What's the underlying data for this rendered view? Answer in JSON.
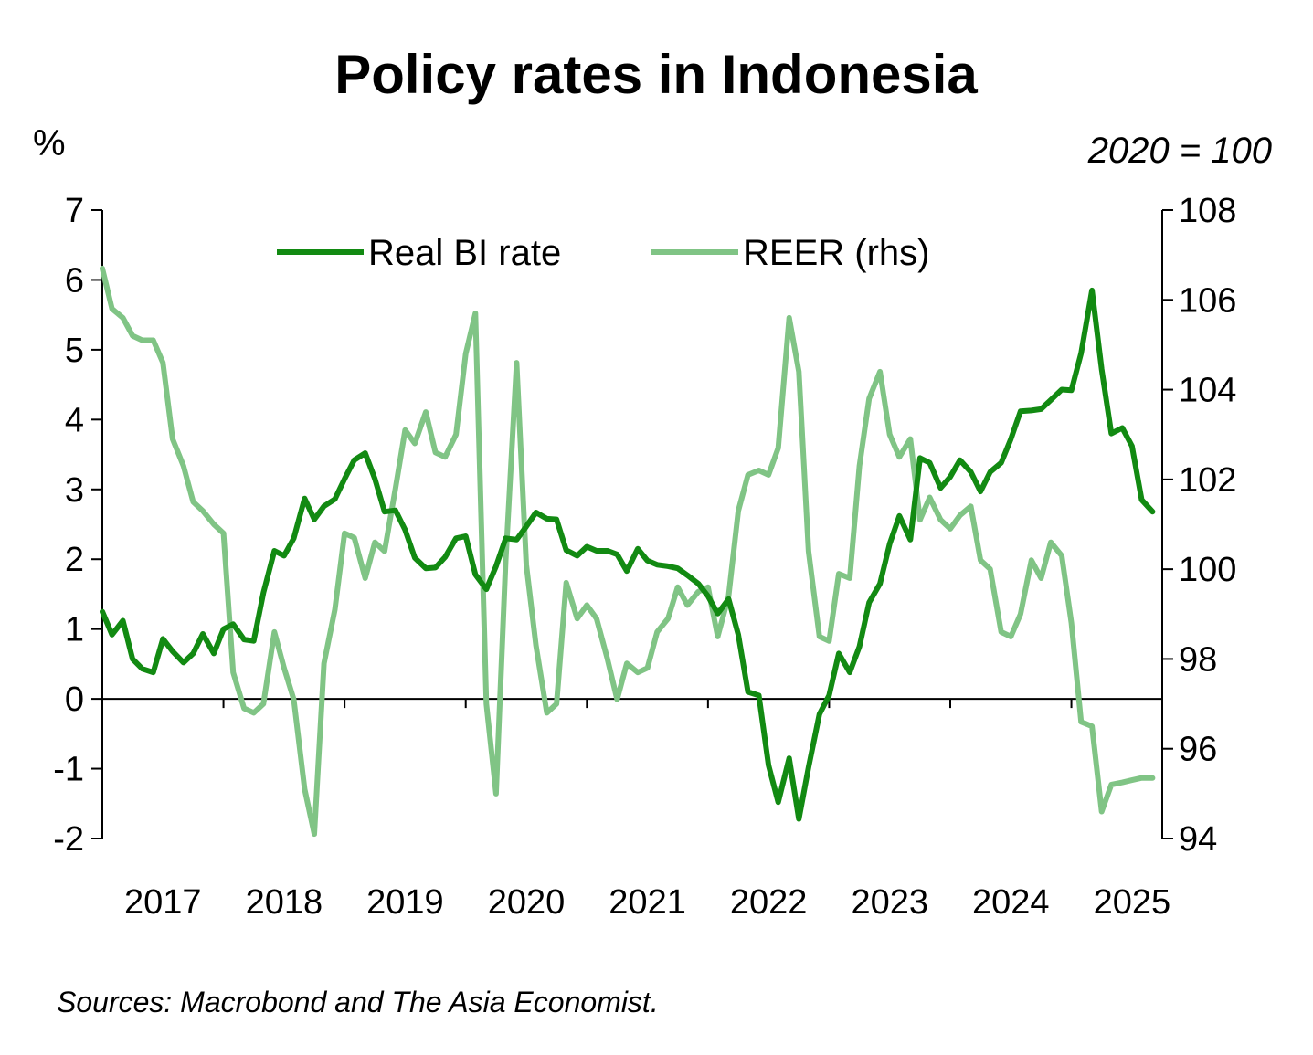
{
  "chart_data": {
    "type": "line",
    "title": "Policy rates in Indonesia",
    "left_axis_unit": "%",
    "right_axis_unit": "2020 = 100",
    "x_tick_labels": [
      "2017",
      "2018",
      "2019",
      "2020",
      "2021",
      "2022",
      "2023",
      "2024",
      "2025"
    ],
    "x_range": [
      2017.0,
      2025.75
    ],
    "y_left": {
      "min": -2,
      "max": 7,
      "ticks": [
        7,
        6,
        5,
        4,
        3,
        2,
        1,
        0,
        -1,
        -2
      ]
    },
    "y_right": {
      "min": 94,
      "max": 108,
      "ticks": [
        108,
        106,
        104,
        102,
        100,
        98,
        96,
        94
      ]
    },
    "legend_position": "top",
    "source": "Sources: Macrobond and The Asia Economist.",
    "series": [
      {
        "name": "Real BI rate",
        "axis": "left",
        "color": "#128a12",
        "points": [
          [
            2017.0,
            1.25
          ],
          [
            2017.08,
            0.92
          ],
          [
            2017.17,
            1.12
          ],
          [
            2017.25,
            0.57
          ],
          [
            2017.33,
            0.43
          ],
          [
            2017.42,
            0.38
          ],
          [
            2017.5,
            0.86
          ],
          [
            2017.58,
            0.68
          ],
          [
            2017.67,
            0.52
          ],
          [
            2017.75,
            0.65
          ],
          [
            2017.83,
            0.93
          ],
          [
            2017.92,
            0.65
          ],
          [
            2018.0,
            1.0
          ],
          [
            2018.08,
            1.07
          ],
          [
            2018.17,
            0.85
          ],
          [
            2018.25,
            0.83
          ],
          [
            2018.33,
            1.52
          ],
          [
            2018.42,
            2.12
          ],
          [
            2018.5,
            2.05
          ],
          [
            2018.58,
            2.3
          ],
          [
            2018.67,
            2.87
          ],
          [
            2018.75,
            2.57
          ],
          [
            2018.83,
            2.76
          ],
          [
            2018.92,
            2.86
          ],
          [
            2019.0,
            3.15
          ],
          [
            2019.08,
            3.42
          ],
          [
            2019.17,
            3.52
          ],
          [
            2019.25,
            3.15
          ],
          [
            2019.33,
            2.68
          ],
          [
            2019.42,
            2.7
          ],
          [
            2019.5,
            2.42
          ],
          [
            2019.58,
            2.02
          ],
          [
            2019.67,
            1.87
          ],
          [
            2019.75,
            1.88
          ],
          [
            2019.83,
            2.03
          ],
          [
            2019.92,
            2.3
          ],
          [
            2020.0,
            2.33
          ],
          [
            2020.08,
            1.78
          ],
          [
            2020.17,
            1.57
          ],
          [
            2020.25,
            1.9
          ],
          [
            2020.33,
            2.3
          ],
          [
            2020.42,
            2.28
          ],
          [
            2020.5,
            2.47
          ],
          [
            2020.58,
            2.67
          ],
          [
            2020.67,
            2.58
          ],
          [
            2020.75,
            2.57
          ],
          [
            2020.83,
            2.13
          ],
          [
            2020.92,
            2.05
          ],
          [
            2021.0,
            2.18
          ],
          [
            2021.08,
            2.12
          ],
          [
            2021.17,
            2.12
          ],
          [
            2021.25,
            2.07
          ],
          [
            2021.33,
            1.83
          ],
          [
            2021.42,
            2.15
          ],
          [
            2021.5,
            1.98
          ],
          [
            2021.58,
            1.92
          ],
          [
            2021.67,
            1.9
          ],
          [
            2021.75,
            1.87
          ],
          [
            2021.83,
            1.77
          ],
          [
            2021.92,
            1.65
          ],
          [
            2022.0,
            1.47
          ],
          [
            2022.08,
            1.22
          ],
          [
            2022.17,
            1.43
          ],
          [
            2022.25,
            0.92
          ],
          [
            2022.33,
            0.1
          ],
          [
            2022.42,
            0.05
          ],
          [
            2022.5,
            -0.95
          ],
          [
            2022.58,
            -1.48
          ],
          [
            2022.67,
            -0.85
          ],
          [
            2022.75,
            -1.72
          ],
          [
            2022.83,
            -0.98
          ],
          [
            2022.92,
            -0.22
          ],
          [
            2023.0,
            0.05
          ],
          [
            2023.08,
            0.65
          ],
          [
            2023.17,
            0.38
          ],
          [
            2023.25,
            0.75
          ],
          [
            2023.33,
            1.38
          ],
          [
            2023.42,
            1.65
          ],
          [
            2023.5,
            2.22
          ],
          [
            2023.58,
            2.62
          ],
          [
            2023.67,
            2.28
          ],
          [
            2023.75,
            3.45
          ],
          [
            2023.83,
            3.38
          ],
          [
            2023.92,
            3.02
          ],
          [
            2024.0,
            3.18
          ],
          [
            2024.08,
            3.42
          ],
          [
            2024.17,
            3.25
          ],
          [
            2024.25,
            2.97
          ],
          [
            2024.33,
            3.25
          ],
          [
            2024.42,
            3.38
          ],
          [
            2024.5,
            3.72
          ],
          [
            2024.58,
            4.12
          ],
          [
            2024.67,
            4.13
          ],
          [
            2024.75,
            4.15
          ],
          [
            2024.83,
            4.28
          ],
          [
            2024.92,
            4.43
          ],
          [
            2025.0,
            4.42
          ],
          [
            2025.08,
            4.95
          ],
          [
            2025.17,
            5.85
          ],
          [
            2025.25,
            4.72
          ],
          [
            2025.33,
            3.8
          ],
          [
            2025.42,
            3.88
          ],
          [
            2025.5,
            3.62
          ],
          [
            2025.58,
            2.85
          ],
          [
            2025.67,
            2.68
          ]
        ]
      },
      {
        "name": "REER (rhs)",
        "axis": "right",
        "color": "#80c485",
        "points": [
          [
            2017.0,
            106.7
          ],
          [
            2017.08,
            105.8
          ],
          [
            2017.17,
            105.6
          ],
          [
            2017.25,
            105.2
          ],
          [
            2017.33,
            105.1
          ],
          [
            2017.42,
            105.1
          ],
          [
            2017.5,
            104.6
          ],
          [
            2017.58,
            102.9
          ],
          [
            2017.67,
            102.3
          ],
          [
            2017.75,
            101.5
          ],
          [
            2017.83,
            101.3
          ],
          [
            2017.92,
            101.0
          ],
          [
            2018.0,
            100.8
          ],
          [
            2018.08,
            97.7
          ],
          [
            2018.17,
            96.9
          ],
          [
            2018.25,
            96.8
          ],
          [
            2018.33,
            97.0
          ],
          [
            2018.42,
            98.6
          ],
          [
            2018.5,
            97.8
          ],
          [
            2018.58,
            97.1
          ],
          [
            2018.67,
            95.1
          ],
          [
            2018.75,
            94.1
          ],
          [
            2018.83,
            97.9
          ],
          [
            2018.92,
            99.1
          ],
          [
            2019.0,
            100.8
          ],
          [
            2019.08,
            100.7
          ],
          [
            2019.17,
            99.8
          ],
          [
            2019.25,
            100.6
          ],
          [
            2019.33,
            100.4
          ],
          [
            2019.42,
            101.8
          ],
          [
            2019.5,
            103.1
          ],
          [
            2019.58,
            102.8
          ],
          [
            2019.67,
            103.5
          ],
          [
            2019.75,
            102.6
          ],
          [
            2019.83,
            102.5
          ],
          [
            2019.92,
            103.0
          ],
          [
            2020.0,
            104.8
          ],
          [
            2020.08,
            105.7
          ],
          [
            2020.17,
            97.0
          ],
          [
            2020.25,
            95.0
          ],
          [
            2020.33,
            100.2
          ],
          [
            2020.42,
            104.6
          ],
          [
            2020.5,
            100.1
          ],
          [
            2020.58,
            98.3
          ],
          [
            2020.67,
            96.8
          ],
          [
            2020.75,
            97.0
          ],
          [
            2020.83,
            99.7
          ],
          [
            2020.92,
            98.9
          ],
          [
            2021.0,
            99.2
          ],
          [
            2021.08,
            98.9
          ],
          [
            2021.17,
            98.0
          ],
          [
            2021.25,
            97.1
          ],
          [
            2021.33,
            97.9
          ],
          [
            2021.42,
            97.7
          ],
          [
            2021.5,
            97.8
          ],
          [
            2021.58,
            98.6
          ],
          [
            2021.67,
            98.9
          ],
          [
            2021.75,
            99.6
          ],
          [
            2021.83,
            99.2
          ],
          [
            2021.92,
            99.5
          ],
          [
            2022.0,
            99.6
          ],
          [
            2022.08,
            98.5
          ],
          [
            2022.17,
            99.4
          ],
          [
            2022.25,
            101.3
          ],
          [
            2022.33,
            102.1
          ],
          [
            2022.42,
            102.2
          ],
          [
            2022.5,
            102.1
          ],
          [
            2022.58,
            102.7
          ],
          [
            2022.67,
            105.6
          ],
          [
            2022.75,
            104.4
          ],
          [
            2022.83,
            100.4
          ],
          [
            2022.92,
            98.5
          ],
          [
            2023.0,
            98.4
          ],
          [
            2023.08,
            99.9
          ],
          [
            2023.17,
            99.8
          ],
          [
            2023.25,
            102.3
          ],
          [
            2023.33,
            103.8
          ],
          [
            2023.42,
            104.4
          ],
          [
            2023.5,
            103.0
          ],
          [
            2023.58,
            102.5
          ],
          [
            2023.67,
            102.9
          ],
          [
            2023.75,
            101.1
          ],
          [
            2023.83,
            101.6
          ],
          [
            2023.92,
            101.1
          ],
          [
            2024.0,
            100.9
          ],
          [
            2024.08,
            101.2
          ],
          [
            2024.17,
            101.4
          ],
          [
            2024.25,
            100.2
          ],
          [
            2024.33,
            100.0
          ],
          [
            2024.42,
            98.6
          ],
          [
            2024.5,
            98.5
          ],
          [
            2024.58,
            99.0
          ],
          [
            2024.67,
            100.2
          ],
          [
            2024.75,
            99.8
          ],
          [
            2024.83,
            100.6
          ],
          [
            2024.92,
            100.3
          ],
          [
            2025.0,
            98.8
          ],
          [
            2025.08,
            96.6
          ],
          [
            2025.17,
            96.5
          ],
          [
            2025.25,
            94.6
          ],
          [
            2025.33,
            95.2
          ],
          [
            2025.42,
            95.25
          ],
          [
            2025.5,
            95.3
          ],
          [
            2025.58,
            95.35
          ],
          [
            2025.67,
            95.35
          ]
        ]
      }
    ]
  }
}
